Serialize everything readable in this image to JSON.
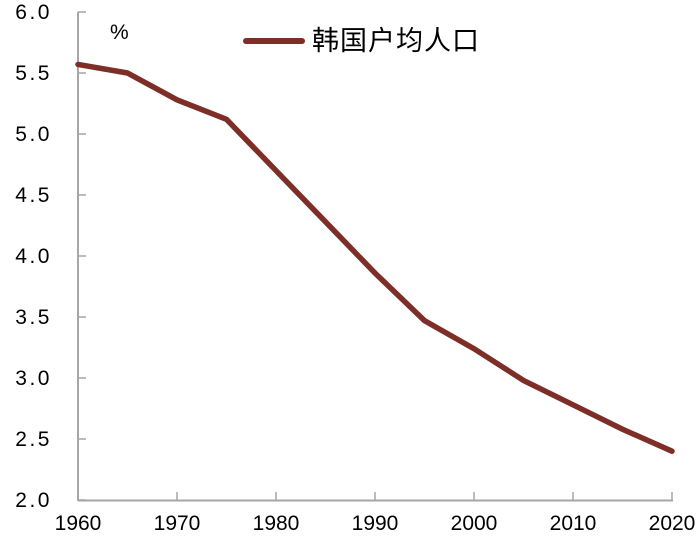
{
  "chart_data": {
    "type": "line",
    "title": "",
    "unit_label": "%",
    "xlabel": "",
    "ylabel": "%",
    "x": [
      1960,
      1965,
      1970,
      1975,
      1980,
      1985,
      1990,
      1995,
      2000,
      2005,
      2010,
      2015,
      2020
    ],
    "series": [
      {
        "name": "韩国户均人口",
        "values": [
          5.57,
          5.5,
          5.28,
          5.12,
          4.7,
          4.28,
          3.86,
          3.47,
          3.24,
          2.98,
          2.78,
          2.58,
          2.4
        ]
      }
    ],
    "xlim": [
      1960,
      2020
    ],
    "ylim": [
      2.0,
      6.0
    ],
    "x_ticks": [
      "1960",
      "1970",
      "1980",
      "1990",
      "2000",
      "2010",
      "2020"
    ],
    "y_ticks": [
      "6.0",
      "5.5",
      "5.0",
      "4.5",
      "4.0",
      "3.5",
      "3.0",
      "2.5",
      "2.0"
    ],
    "grid": false,
    "legend_position": "top-center",
    "colors": {
      "line": "#7c2e27",
      "axis": "#a6a6a6",
      "text": "#000000",
      "background": "#ffffff"
    }
  }
}
